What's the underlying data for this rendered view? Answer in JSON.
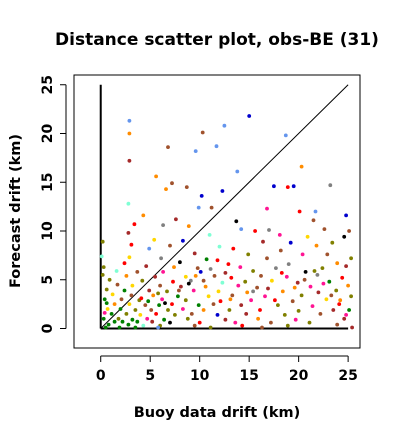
{
  "chart_data": {
    "type": "scatter",
    "title": "Distance scatter plot, obs-BE (31)",
    "xlabel": "Buoy data drift (km)",
    "ylabel": "Forecast drift (km)",
    "xlim": [
      -2.7,
      26.2
    ],
    "ylim": [
      -2.0,
      26.0
    ],
    "xticks": [
      0,
      5,
      10,
      15,
      20,
      25
    ],
    "yticks": [
      0,
      5,
      10,
      15,
      20,
      25
    ],
    "grid": false,
    "legend": "none",
    "reference_lines": [
      {
        "name": "diagonal",
        "x": [
          0,
          25
        ],
        "y": [
          0,
          25
        ]
      },
      {
        "name": "x-axis segment",
        "x": [
          0,
          25
        ],
        "y": [
          0,
          0
        ]
      },
      {
        "name": "y-axis segment",
        "x": [
          0,
          0
        ],
        "y": [
          0,
          25
        ]
      }
    ],
    "points": [
      [
        2.9,
        21.3,
        "#6495ed"
      ],
      [
        15.0,
        21.8,
        "#0000cd"
      ],
      [
        12.5,
        20.8,
        "#6495ed"
      ],
      [
        2.9,
        20.0,
        "#ff8c00"
      ],
      [
        10.3,
        20.1,
        "#a0522d"
      ],
      [
        18.7,
        19.8,
        "#6495ed"
      ],
      [
        20.3,
        16.6,
        "#ff8c00"
      ],
      [
        6.8,
        18.6,
        "#a0522d"
      ],
      [
        11.7,
        18.7,
        "#6495ed"
      ],
      [
        9.6,
        18.2,
        "#6495ed"
      ],
      [
        2.9,
        17.2,
        "#a52a2a"
      ],
      [
        13.8,
        16.1,
        "#6495ed"
      ],
      [
        5.6,
        15.6,
        "#ff8c00"
      ],
      [
        7.2,
        14.9,
        "#a0522d"
      ],
      [
        8.7,
        14.5,
        "#a0522d"
      ],
      [
        19.5,
        14.6,
        "#0000cd"
      ],
      [
        6.6,
        14.3,
        "#ff8c00"
      ],
      [
        12.3,
        14.1,
        "#0000cd"
      ],
      [
        17.5,
        14.6,
        "#0000cd"
      ],
      [
        18.9,
        14.5,
        "#ff0000"
      ],
      [
        23.2,
        14.7,
        "#808080"
      ],
      [
        10.2,
        13.6,
        "#0000cd"
      ],
      [
        2.8,
        12.8,
        "#7fffd4"
      ],
      [
        9.9,
        12.4,
        "#6495ed"
      ],
      [
        11.2,
        12.4,
        "#a0522d"
      ],
      [
        16.8,
        12.3,
        "#ff1493"
      ],
      [
        20.1,
        12.0,
        "#ff0000"
      ],
      [
        21.7,
        12.0,
        "#6495ed"
      ],
      [
        24.8,
        11.6,
        "#0000cd"
      ],
      [
        4.3,
        11.6,
        "#ff8c00"
      ],
      [
        7.6,
        11.2,
        "#a52a2a"
      ],
      [
        13.7,
        11.0,
        "#000000"
      ],
      [
        21.5,
        11.1,
        "#a0522d"
      ],
      [
        3.4,
        10.7,
        "#ff0000"
      ],
      [
        6.3,
        10.6,
        "#808080"
      ],
      [
        8.9,
        10.5,
        "#ff8c00"
      ],
      [
        14.2,
        10.2,
        "#6495ed"
      ],
      [
        15.6,
        10.0,
        "#ff0000"
      ],
      [
        17.0,
        10.1,
        "#808080"
      ],
      [
        22.6,
        10.2,
        "#a0522d"
      ],
      [
        25.1,
        10.0,
        "#a0522d"
      ],
      [
        2.8,
        9.8,
        "#a52a2a"
      ],
      [
        11.0,
        9.6,
        "#7fffd4"
      ],
      [
        18.1,
        9.6,
        "#ff1493"
      ],
      [
        20.9,
        9.4,
        "#ffd700"
      ],
      [
        24.6,
        9.4,
        "#000000"
      ],
      [
        5.4,
        9.1,
        "#ffd700"
      ],
      [
        8.3,
        9.0,
        "#0000cd"
      ],
      [
        16.4,
        8.9,
        "#a52a2a"
      ],
      [
        19.2,
        8.8,
        "#0000cd"
      ],
      [
        23.4,
        8.8,
        "#808000"
      ],
      [
        3.1,
        8.6,
        "#ff0000"
      ],
      [
        7.0,
        8.5,
        "#a0522d"
      ],
      [
        12.0,
        8.4,
        "#7fffd4"
      ],
      [
        21.8,
        8.5,
        "#ff8c00"
      ],
      [
        4.9,
        8.2,
        "#6495ed"
      ],
      [
        13.4,
        8.2,
        "#ff0000"
      ],
      [
        18.2,
        8.0,
        "#a0522d"
      ],
      [
        9.5,
        7.7,
        "#a52a2a"
      ],
      [
        14.9,
        7.6,
        "#808000"
      ],
      [
        20.4,
        7.6,
        "#ff1493"
      ],
      [
        22.9,
        7.6,
        "#a0522d"
      ],
      [
        2.9,
        7.3,
        "#ffd700"
      ],
      [
        6.1,
        7.2,
        "#808080"
      ],
      [
        10.7,
        7.1,
        "#008000"
      ],
      [
        11.8,
        7.0,
        "#ff0000"
      ],
      [
        16.8,
        7.2,
        "#a0522d"
      ],
      [
        25.3,
        7.2,
        "#808000"
      ],
      [
        2.4,
        6.7,
        "#ff0000"
      ],
      [
        8.0,
        6.8,
        "#000000"
      ],
      [
        12.9,
        6.6,
        "#ff0000"
      ],
      [
        19.0,
        6.6,
        "#808080"
      ],
      [
        23.9,
        6.7,
        "#ff8c00"
      ],
      [
        4.6,
        6.4,
        "#a52a2a"
      ],
      [
        7.4,
        6.3,
        "#ff8c00"
      ],
      [
        9.8,
        6.2,
        "#a0522d"
      ],
      [
        14.1,
        6.3,
        "#ff1493"
      ],
      [
        17.7,
        6.2,
        "#808080"
      ],
      [
        22.4,
        6.2,
        "#808000"
      ],
      [
        24.8,
        6.4,
        "#a52a2a"
      ],
      [
        1.6,
        5.9,
        "#7fffd4"
      ],
      [
        3.7,
        5.8,
        "#a0522d"
      ],
      [
        6.3,
        5.8,
        "#ff1493"
      ],
      [
        10.1,
        5.8,
        "#0000cd"
      ],
      [
        15.4,
        5.9,
        "#808000"
      ],
      [
        20.7,
        5.8,
        "#000000"
      ],
      [
        21.6,
        5.9,
        "#808000"
      ],
      [
        2.6,
        5.4,
        "#ff8c00"
      ],
      [
        5.5,
        5.3,
        "#a52a2a"
      ],
      [
        8.6,
        5.3,
        "#ffd700"
      ],
      [
        11.5,
        5.4,
        "#a0522d"
      ],
      [
        13.2,
        5.2,
        "#ff0000"
      ],
      [
        16.2,
        5.4,
        "#a0522d"
      ],
      [
        18.8,
        5.3,
        "#ff1493"
      ],
      [
        24.4,
        5.2,
        "#ff0000"
      ],
      [
        0.9,
        5.0,
        "#808000"
      ],
      [
        4.2,
        4.9,
        "#808000"
      ],
      [
        7.3,
        4.8,
        "#ff0000"
      ],
      [
        9.1,
        4.9,
        "#808080"
      ],
      [
        12.3,
        4.7,
        "#7fffd4"
      ],
      [
        14.6,
        4.8,
        "#808000"
      ],
      [
        17.3,
        4.9,
        "#ffd700"
      ],
      [
        19.9,
        4.7,
        "#a52a2a"
      ],
      [
        23.1,
        4.8,
        "#008000"
      ],
      [
        1.7,
        4.5,
        "#a0522d"
      ],
      [
        3.2,
        4.4,
        "#ffd700"
      ],
      [
        6.0,
        4.4,
        "#a0522d"
      ],
      [
        8.1,
        4.3,
        "#a52a2a"
      ],
      [
        10.6,
        4.3,
        "#ff8c00"
      ],
      [
        13.9,
        4.4,
        "#ff1493"
      ],
      [
        15.8,
        4.2,
        "#a0522d"
      ],
      [
        21.2,
        4.3,
        "#ff1493"
      ],
      [
        25.0,
        4.4,
        "#ff8c00"
      ],
      [
        0.6,
        4.0,
        "#808000"
      ],
      [
        2.4,
        3.9,
        "#008000"
      ],
      [
        4.9,
        3.9,
        "#a52a2a"
      ],
      [
        6.7,
        3.8,
        "#808000"
      ],
      [
        9.4,
        3.9,
        "#ff1493"
      ],
      [
        11.9,
        3.8,
        "#ffd700"
      ],
      [
        14.8,
        3.7,
        "#ff8c00"
      ],
      [
        18.4,
        3.8,
        "#ff8c00"
      ],
      [
        22.0,
        3.7,
        "#a52a2a"
      ],
      [
        23.8,
        3.9,
        "#808000"
      ],
      [
        1.2,
        3.5,
        "#ffd700"
      ],
      [
        3.1,
        3.4,
        "#a0522d"
      ],
      [
        5.3,
        3.4,
        "#ff8c00"
      ],
      [
        7.8,
        3.3,
        "#008000"
      ],
      [
        10.9,
        3.3,
        "#ffd700"
      ],
      [
        13.3,
        3.4,
        "#a0522d"
      ],
      [
        16.6,
        3.3,
        "#ff1493"
      ],
      [
        20.3,
        3.4,
        "#808000"
      ],
      [
        25.3,
        3.3,
        "#808000"
      ],
      [
        0.4,
        3.0,
        "#008000"
      ],
      [
        2.1,
        3.0,
        "#a0522d"
      ],
      [
        3.9,
        2.9,
        "#808000"
      ],
      [
        6.2,
        3.0,
        "#ff1493"
      ],
      [
        8.6,
        2.9,
        "#808000"
      ],
      [
        12.1,
        2.8,
        "#ff0000"
      ],
      [
        15.2,
        2.9,
        "#ff1493"
      ],
      [
        19.4,
        2.8,
        "#a0522d"
      ],
      [
        22.8,
        3.0,
        "#ffd700"
      ],
      [
        1.4,
        2.5,
        "#ff8c00"
      ],
      [
        2.9,
        2.5,
        "#ffd700"
      ],
      [
        4.5,
        2.4,
        "#a0522d"
      ],
      [
        5.9,
        2.4,
        "#008000"
      ],
      [
        7.2,
        2.5,
        "#ff0000"
      ],
      [
        9.9,
        2.4,
        "#008000"
      ],
      [
        11.4,
        2.5,
        "#a0522d"
      ],
      [
        14.2,
        2.4,
        "#a52a2a"
      ],
      [
        17.9,
        2.4,
        "#808000"
      ],
      [
        21.4,
        2.3,
        "#ff1493"
      ],
      [
        24.1,
        2.5,
        "#ff0000"
      ],
      [
        0.7,
        2.0,
        "#ffd700"
      ],
      [
        2.0,
        2.0,
        "#008000"
      ],
      [
        3.5,
        1.9,
        "#808000"
      ],
      [
        5.1,
        1.9,
        "#a0522d"
      ],
      [
        6.8,
        1.9,
        "#808000"
      ],
      [
        8.3,
        2.0,
        "#ff1493"
      ],
      [
        10.4,
        1.9,
        "#ff8c00"
      ],
      [
        13.0,
        1.9,
        "#808000"
      ],
      [
        16.1,
        1.9,
        "#ff0000"
      ],
      [
        20.0,
        1.8,
        "#808000"
      ],
      [
        23.5,
        1.9,
        "#a52a2a"
      ],
      [
        25.1,
        1.9,
        "#008000"
      ],
      [
        1.1,
        1.5,
        "#008000"
      ],
      [
        2.6,
        1.5,
        "#808000"
      ],
      [
        4.0,
        1.4,
        "#ffd700"
      ],
      [
        5.6,
        1.5,
        "#ff0000"
      ],
      [
        7.5,
        1.4,
        "#808000"
      ],
      [
        9.2,
        1.5,
        "#a0522d"
      ],
      [
        11.8,
        1.4,
        "#0000cd"
      ],
      [
        14.7,
        1.5,
        "#a52a2a"
      ],
      [
        18.6,
        1.4,
        "#808000"
      ],
      [
        22.2,
        1.5,
        "#a0522d"
      ],
      [
        0.3,
        1.0,
        "#008000"
      ],
      [
        1.8,
        1.0,
        "#808000"
      ],
      [
        3.2,
        0.9,
        "#008000"
      ],
      [
        4.7,
        1.0,
        "#ff1493"
      ],
      [
        6.4,
        0.9,
        "#008000"
      ],
      [
        8.8,
        1.0,
        "#808000"
      ],
      [
        12.6,
        0.9,
        "#a52a2a"
      ],
      [
        15.9,
        1.0,
        "#ff8c00"
      ],
      [
        19.7,
        0.9,
        "#ff1493"
      ],
      [
        24.6,
        1.0,
        "#a52a2a"
      ],
      [
        1.4,
        0.7,
        "#008000"
      ],
      [
        2.2,
        0.7,
        "#008000"
      ],
      [
        3.7,
        0.7,
        "#008000"
      ],
      [
        5.2,
        0.7,
        "#a52a2a"
      ],
      [
        7.0,
        0.6,
        "#000000"
      ],
      [
        10.0,
        0.6,
        "#ff0000"
      ],
      [
        13.6,
        0.6,
        "#ff1493"
      ],
      [
        17.2,
        0.6,
        "#a0522d"
      ],
      [
        21.1,
        0.6,
        "#808000"
      ],
      [
        0.8,
        0.4,
        "#008000"
      ],
      [
        2.8,
        0.4,
        "#008000"
      ],
      [
        4.3,
        0.3,
        "#7fffd4"
      ],
      [
        6.0,
        0.3,
        "#808000"
      ],
      [
        9.5,
        0.3,
        "#a0522d"
      ],
      [
        14.3,
        0.3,
        "#ff0000"
      ],
      [
        18.9,
        0.3,
        "#808000"
      ],
      [
        23.9,
        0.4,
        "#a0522d"
      ],
      [
        0.5,
        0.1,
        "#008000"
      ],
      [
        1.9,
        0.1,
        "#008000"
      ],
      [
        3.5,
        0.1,
        "#008000"
      ],
      [
        5.8,
        0.1,
        "#6495ed"
      ],
      [
        11.1,
        0.1,
        "#808000"
      ],
      [
        16.3,
        0.1,
        "#a0522d"
      ],
      [
        25.4,
        0.1,
        "#a52a2a"
      ],
      [
        0.2,
        8.9,
        "#808000"
      ],
      [
        0.1,
        7.4,
        "#7fffd4"
      ],
      [
        0.3,
        6.3,
        "#808000"
      ],
      [
        0.2,
        5.5,
        "#808000"
      ],
      [
        0.6,
        2.6,
        "#008000"
      ],
      [
        0.4,
        1.6,
        "#ff1493"
      ],
      [
        4.1,
        3.1,
        "#ff0000"
      ],
      [
        4.8,
        2.8,
        "#008000"
      ],
      [
        5.8,
        3.6,
        "#808000"
      ],
      [
        6.5,
        2.6,
        "#000000"
      ],
      [
        7.9,
        3.9,
        "#a0522d"
      ],
      [
        8.9,
        4.6,
        "#000000"
      ],
      [
        9.6,
        5.4,
        "#ff8c00"
      ],
      [
        10.4,
        4.9,
        "#a0522d"
      ],
      [
        11.1,
        6.1,
        "#808080"
      ],
      [
        12.6,
        5.7,
        "#a52a2a"
      ],
      [
        13.1,
        3.0,
        "#ff8c00"
      ],
      [
        15.4,
        3.8,
        "#808080"
      ],
      [
        16.9,
        4.1,
        "#a52a2a"
      ],
      [
        17.6,
        2.9,
        "#ff0000"
      ],
      [
        18.3,
        5.7,
        "#ff0000"
      ],
      [
        19.6,
        4.2,
        "#ff8c00"
      ],
      [
        20.6,
        5.0,
        "#a0522d"
      ],
      [
        21.9,
        5.5,
        "#808080"
      ],
      [
        22.5,
        4.6,
        "#ff1493"
      ],
      [
        23.3,
        3.4,
        "#a0522d"
      ],
      [
        24.2,
        2.9,
        "#ff8c00"
      ],
      [
        24.8,
        1.4,
        "#ff1493"
      ]
    ]
  }
}
